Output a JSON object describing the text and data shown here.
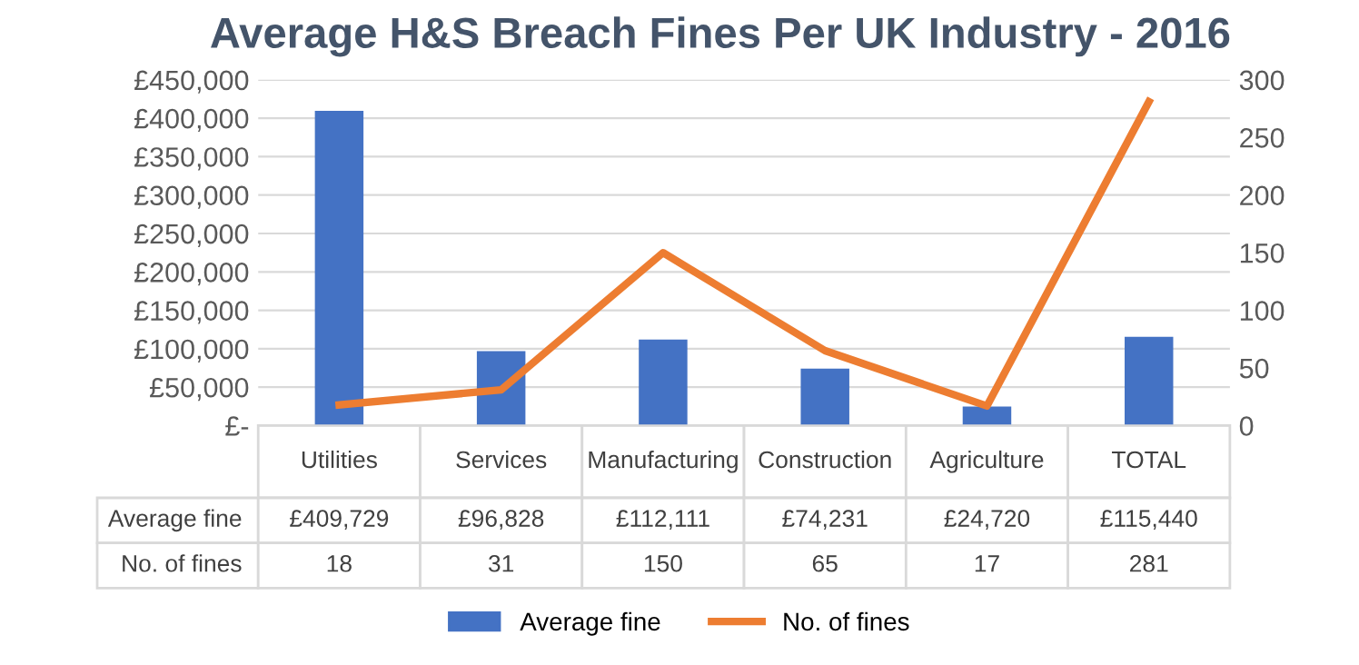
{
  "chart_data": {
    "type": "bar",
    "title": "Average H&S Breach Fines Per UK Industry - 2016",
    "categories": [
      "Utilities",
      "Services",
      "Manufacturing",
      "Construction",
      "Agriculture",
      "TOTAL"
    ],
    "series": [
      {
        "name": "Average fine",
        "color": "#4472c4",
        "values": [
          409729,
          96828,
          112111,
          74231,
          24720,
          115440
        ],
        "value_labels": [
          "£409,729",
          "£96,828",
          "£112,111",
          "£74,231",
          "£24,720",
          "£115,440"
        ]
      },
      {
        "name": "No. of fines",
        "type": "line",
        "axis": "y2",
        "color": "#ed7d31",
        "values": [
          18,
          31,
          150,
          65,
          17,
          281
        ],
        "value_labels": [
          "18",
          "31",
          "150",
          "65",
          "17",
          "281"
        ]
      }
    ],
    "ylim": [
      0,
      450000
    ],
    "yticks": [
      {
        "value": 0,
        "label": "£-"
      },
      {
        "value": 50000,
        "label": "£50,000"
      },
      {
        "value": 100000,
        "label": "£100,000"
      },
      {
        "value": 150000,
        "label": "£150,000"
      },
      {
        "value": 200000,
        "label": "£200,000"
      },
      {
        "value": 250000,
        "label": "£250,000"
      },
      {
        "value": 300000,
        "label": "£300,000"
      },
      {
        "value": 350000,
        "label": "£350,000"
      },
      {
        "value": 400000,
        "label": "£400,000"
      },
      {
        "value": 450000,
        "label": "£450,000"
      }
    ],
    "y2lim": [
      0,
      300
    ],
    "y2ticks": [
      0,
      50,
      100,
      150,
      200,
      250,
      300
    ],
    "grid": "y",
    "legend": "bottom"
  }
}
